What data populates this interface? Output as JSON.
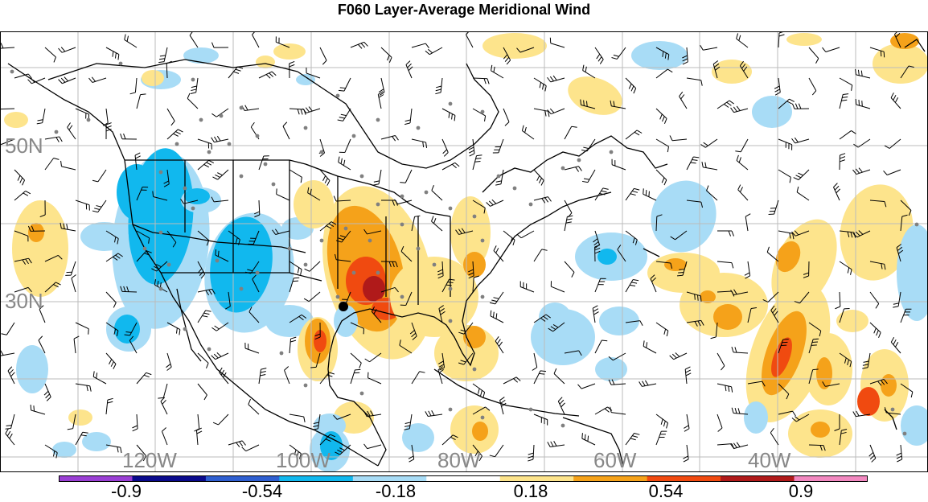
{
  "title": "F060 Layer-Average Meridional Wind",
  "map": {
    "lat_labels": [
      "50N",
      "30N"
    ],
    "lon_labels": [
      "120W",
      "100W",
      "80W",
      "60W",
      "40W"
    ],
    "label_color": "#888888",
    "gridline_color": "#bbbbbb",
    "coastline_color": "#000000",
    "station_dot_color": "#808080",
    "marker_color": "#000000"
  },
  "colorbar": {
    "tick_labels": [
      "-0.9",
      "-0.54",
      "-0.18",
      "0.18",
      "0.54",
      "0.9"
    ],
    "colors": [
      "#9a3fd4",
      "#0a0a8c",
      "#2f5fd0",
      "#11b8ee",
      "#a8dcf6",
      "#ffffff",
      "#fde48c",
      "#f5a21a",
      "#f04a10",
      "#b01a1a",
      "#f288c0"
    ]
  },
  "legend_colors": {
    "neg_light": "#a8dcf6",
    "neg_mid": "#11b8ee",
    "pos_light": "#fde48c",
    "pos_mid": "#f5a21a",
    "pos_strong": "#f04a10",
    "pos_max": "#b01a1a"
  }
}
